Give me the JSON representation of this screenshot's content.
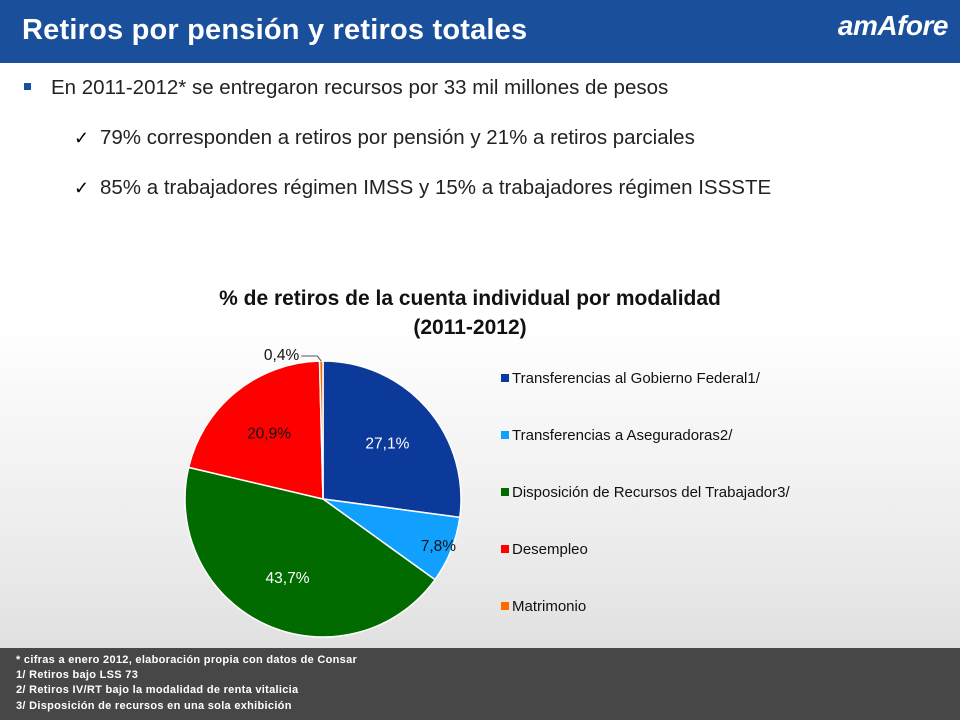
{
  "header": {
    "title": "Retiros por pensión y retiros totales",
    "logo_text": "amAfore"
  },
  "bullets": {
    "main": "En 2011-2012* se entregaron recursos por 33 mil millones de pesos",
    "sub": [
      "79% corresponden a retiros por pensión y 21% a retiros parciales",
      "85% a trabajadores régimen IMSS y 15% a trabajadores régimen ISSSTE"
    ]
  },
  "chart_data": {
    "type": "pie",
    "title_lines": [
      "% de retiros de la cuenta individual por modalidad",
      "(2011-2012)"
    ],
    "categories": [
      "Transferencias al Gobierno Federal1/",
      "Transferencias a Aseguradoras2/",
      "Disposición de Recursos del Trabajador3/",
      "Desempleo",
      "Matrimonio"
    ],
    "values": [
      27.1,
      7.8,
      43.7,
      20.9,
      0.4
    ],
    "value_labels": [
      "27,1%",
      "7,8%",
      "43,7%",
      "20,9%",
      "0,4%"
    ],
    "colors": [
      "#0b3a9a",
      "#12a0ff",
      "#016b00",
      "#ff0000",
      "#ff6a00"
    ],
    "label_colors": [
      "#ffffff",
      "#111111",
      "#ffffff",
      "#111111",
      "#111111"
    ],
    "legend_position": "right"
  },
  "footer": {
    "lines": [
      "* cifras a enero 2012, elaboración propia con datos de Consar",
      "1/ Retiros bajo LSS 73",
      "2/ Retiros IV/RT  bajo la modalidad de renta vitalicia",
      "3/ Disposición de recursos en una sola exhibición"
    ]
  }
}
